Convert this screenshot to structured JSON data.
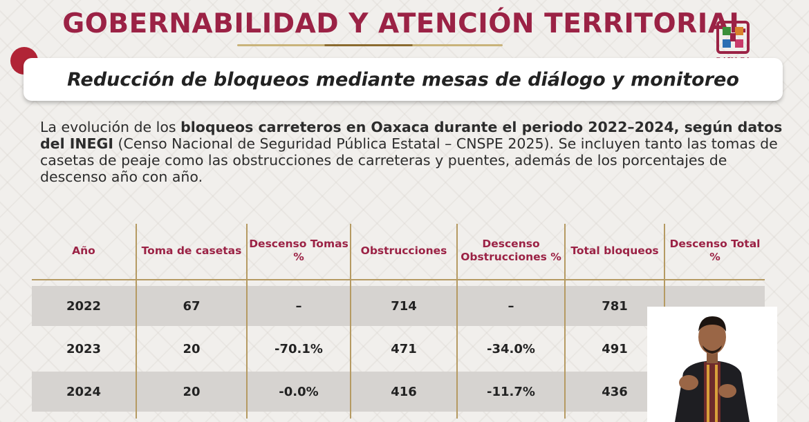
{
  "header": {
    "title": "GOBERNABILIDAD Y ATENCIÓN TERRITORIAL",
    "logo_text": "OAXACA"
  },
  "subtitle": "Reducción de bloqueos mediante mesas de diálogo y monitoreo",
  "intro": {
    "part1": "La evolución de los ",
    "bold1": "bloqueos carreteros en Oaxaca durante el periodo 2022–2024, según datos del INEGI",
    "part2": " (Censo Nacional de Seguridad Pública Estatal – CNSPE 2025). Se incluyen tanto las tomas de casetas de peaje como las obstrucciones de carreteras y puentes, además de los porcentajes de descenso año con año."
  },
  "table": {
    "headers": [
      "Año",
      "Toma de casetas",
      "Descenso Tomas %",
      "Obstrucciones",
      "Descenso Obstrucciones %",
      "Total bloqueos",
      "Descenso Total %"
    ],
    "rows": [
      [
        "2022",
        "67",
        "–",
        "714",
        "–",
        "781",
        ""
      ],
      [
        "2023",
        "20",
        "-70.1%",
        "471",
        "-34.0%",
        "491",
        ""
      ],
      [
        "2024",
        "20",
        "-0.0%",
        "416",
        "-11.7%",
        "436",
        ""
      ]
    ]
  },
  "colors": {
    "brand": "#9b2245",
    "accent_red": "#b12436",
    "divider_gold": "#b59a62",
    "row_shade": "#d6d3d0"
  },
  "icons": [
    "oaxaca-logo-icon",
    "red-circle-icon"
  ]
}
